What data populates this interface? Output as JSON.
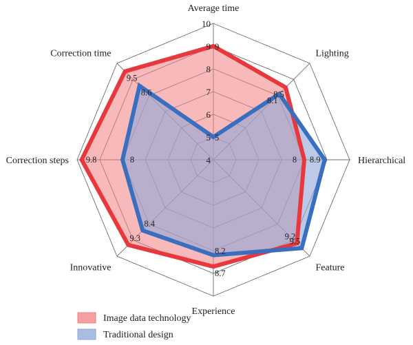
{
  "chart_data": {
    "type": "radar",
    "axes": [
      "Average time",
      "Lighting",
      "Hierarchical",
      "Feature",
      "Experience",
      "Innovative",
      "Correction steps",
      "Correction time"
    ],
    "rlim": [
      4,
      10
    ],
    "ticks": [
      "4",
      "5",
      "6",
      "7",
      "8",
      "9",
      "10"
    ],
    "grid": true,
    "legend_position": "bottom-center",
    "series": [
      {
        "name": "Image data technology",
        "values": [
          9,
          8.5,
          8,
          9.2,
          8.7,
          9.3,
          9.8,
          9.5
        ],
        "labels": [
          "9",
          "8.5",
          "8",
          "9.2",
          "8.7",
          "9.3",
          "9.8",
          "9.5"
        ],
        "line_color": "#e8383d",
        "fill_color": "#f08080"
      },
      {
        "name": "Traditional design",
        "values": [
          5,
          8.1,
          8.9,
          9.5,
          8.2,
          8.4,
          8,
          8.6
        ],
        "labels": [
          "5",
          "8.1",
          "8.9",
          "9.5",
          "8.2",
          "8.4",
          "8",
          "8.6"
        ],
        "line_color": "#3a6fbf",
        "fill_color": "#8fa6d9"
      }
    ]
  }
}
